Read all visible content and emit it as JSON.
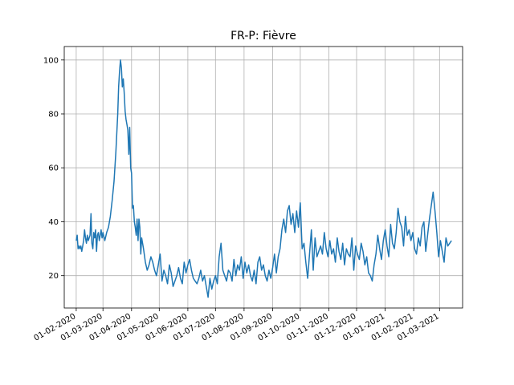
{
  "chart_data": {
    "type": "line",
    "title": "FR-P: Fièvre",
    "xlabel": "",
    "ylabel": "",
    "grid": true,
    "x_range": [
      "2020-01-19",
      "2021-03-26"
    ],
    "ylim": [
      8,
      105
    ],
    "x_ticks": [
      {
        "date": "2020-02-01",
        "label": "01-02-2020"
      },
      {
        "date": "2020-03-01",
        "label": "01-03-2020"
      },
      {
        "date": "2020-04-01",
        "label": "01-04-2020"
      },
      {
        "date": "2020-05-01",
        "label": "01-05-2020"
      },
      {
        "date": "2020-06-01",
        "label": "01-06-2020"
      },
      {
        "date": "2020-07-01",
        "label": "01-07-2020"
      },
      {
        "date": "2020-08-01",
        "label": "01-08-2020"
      },
      {
        "date": "2020-09-01",
        "label": "01-09-2020"
      },
      {
        "date": "2020-10-01",
        "label": "01-10-2020"
      },
      {
        "date": "2020-11-01",
        "label": "01-11-2020"
      },
      {
        "date": "2020-12-01",
        "label": "01-12-2020"
      },
      {
        "date": "2021-01-01",
        "label": "01-01-2021"
      },
      {
        "date": "2021-02-01",
        "label": "01-02-2021"
      },
      {
        "date": "2021-03-01",
        "label": "01-03-2021"
      }
    ],
    "y_ticks": [
      20,
      40,
      60,
      80,
      100
    ],
    "series": [
      {
        "name": "",
        "color": "#1f77b4",
        "x": [
          "2020-02-01",
          "2020-02-02",
          "2020-02-03",
          "2020-02-04",
          "2020-02-05",
          "2020-02-06",
          "2020-02-07",
          "2020-02-08",
          "2020-02-09",
          "2020-02-10",
          "2020-02-11",
          "2020-02-12",
          "2020-02-13",
          "2020-02-14",
          "2020-02-15",
          "2020-02-16",
          "2020-02-17",
          "2020-02-18",
          "2020-02-19",
          "2020-02-20",
          "2020-02-21",
          "2020-02-22",
          "2020-02-23",
          "2020-02-24",
          "2020-02-25",
          "2020-02-26",
          "2020-02-27",
          "2020-02-28",
          "2020-02-29",
          "2020-03-01",
          "2020-03-03",
          "2020-03-05",
          "2020-03-07",
          "2020-03-09",
          "2020-03-11",
          "2020-03-13",
          "2020-03-15",
          "2020-03-17",
          "2020-03-18",
          "2020-03-19",
          "2020-03-20",
          "2020-03-21",
          "2020-03-22",
          "2020-03-23",
          "2020-03-24",
          "2020-03-25",
          "2020-03-26",
          "2020-03-27",
          "2020-03-28",
          "2020-03-29",
          "2020-03-30",
          "2020-03-31",
          "2020-04-01",
          "2020-04-02",
          "2020-04-03",
          "2020-04-04",
          "2020-04-05",
          "2020-04-06",
          "2020-04-07",
          "2020-04-08",
          "2020-04-09",
          "2020-04-10",
          "2020-04-11",
          "2020-04-12",
          "2020-04-14",
          "2020-04-16",
          "2020-04-18",
          "2020-04-20",
          "2020-04-22",
          "2020-04-24",
          "2020-04-26",
          "2020-04-28",
          "2020-04-30",
          "2020-05-02",
          "2020-05-04",
          "2020-05-06",
          "2020-05-08",
          "2020-05-10",
          "2020-05-12",
          "2020-05-14",
          "2020-05-16",
          "2020-05-18",
          "2020-05-20",
          "2020-05-22",
          "2020-05-24",
          "2020-05-26",
          "2020-05-28",
          "2020-05-30",
          "2020-06-01",
          "2020-06-03",
          "2020-06-05",
          "2020-06-07",
          "2020-06-09",
          "2020-06-11",
          "2020-06-13",
          "2020-06-15",
          "2020-06-17",
          "2020-06-19",
          "2020-06-21",
          "2020-06-23",
          "2020-06-25",
          "2020-06-27",
          "2020-06-29",
          "2020-07-01",
          "2020-07-03",
          "2020-07-05",
          "2020-07-07",
          "2020-07-09",
          "2020-07-11",
          "2020-07-13",
          "2020-07-15",
          "2020-07-17",
          "2020-07-19",
          "2020-07-21",
          "2020-07-23",
          "2020-07-25",
          "2020-07-27",
          "2020-07-29",
          "2020-07-31",
          "2020-08-02",
          "2020-08-04",
          "2020-08-06",
          "2020-08-08",
          "2020-08-10",
          "2020-08-12",
          "2020-08-14",
          "2020-08-16",
          "2020-08-18",
          "2020-08-20",
          "2020-08-22",
          "2020-08-24",
          "2020-08-26",
          "2020-08-28",
          "2020-08-30",
          "2020-09-01",
          "2020-09-03",
          "2020-09-05",
          "2020-09-07",
          "2020-09-09",
          "2020-09-11",
          "2020-09-13",
          "2020-09-15",
          "2020-09-17",
          "2020-09-19",
          "2020-09-21",
          "2020-09-23",
          "2020-09-25",
          "2020-09-27",
          "2020-09-29",
          "2020-10-01",
          "2020-10-03",
          "2020-10-05",
          "2020-10-07",
          "2020-10-09",
          "2020-10-11",
          "2020-10-13",
          "2020-10-15",
          "2020-10-17",
          "2020-10-19",
          "2020-10-21",
          "2020-10-23",
          "2020-10-25",
          "2020-10-27",
          "2020-10-29",
          "2020-10-31",
          "2020-11-02",
          "2020-11-04",
          "2020-11-06",
          "2020-11-08",
          "2020-11-10",
          "2020-11-12",
          "2020-11-14",
          "2020-11-16",
          "2020-11-18",
          "2020-11-20",
          "2020-11-22",
          "2020-11-24",
          "2020-11-26",
          "2020-11-28",
          "2020-11-30",
          "2020-12-02",
          "2020-12-04",
          "2020-12-06",
          "2020-12-08",
          "2020-12-10",
          "2020-12-12",
          "2020-12-14",
          "2020-12-16",
          "2020-12-18",
          "2020-12-20",
          "2020-12-22",
          "2020-12-24",
          "2020-12-26",
          "2020-12-28",
          "2020-12-30",
          "2021-01-01",
          "2021-01-03",
          "2021-01-05",
          "2021-01-07",
          "2021-01-09",
          "2021-01-11",
          "2021-01-13",
          "2021-01-15",
          "2021-01-17",
          "2021-01-19",
          "2021-01-21",
          "2021-01-23",
          "2021-01-25",
          "2021-01-27",
          "2021-01-29",
          "2021-01-31",
          "2021-02-02",
          "2021-02-04",
          "2021-02-06",
          "2021-02-08",
          "2021-02-10",
          "2021-02-12",
          "2021-02-14",
          "2021-02-16",
          "2021-02-18",
          "2021-02-20",
          "2021-02-22",
          "2021-02-24",
          "2021-02-26",
          "2021-02-28",
          "2021-03-02",
          "2021-03-04",
          "2021-03-06",
          "2021-03-08",
          "2021-03-10",
          "2021-03-12",
          "2021-03-14"
        ],
        "y": [
          33,
          35,
          30,
          31,
          30,
          31,
          29,
          31,
          33,
          37,
          34,
          32,
          35,
          33,
          34,
          35,
          43,
          32,
          30,
          36,
          34,
          37,
          29,
          35,
          36,
          33,
          35,
          37,
          34,
          36,
          33,
          36,
          38,
          42,
          48,
          55,
          66,
          80,
          90,
          96,
          100,
          97,
          90,
          93,
          88,
          81,
          78,
          76,
          74,
          65,
          75,
          60,
          58,
          45,
          46,
          40,
          38,
          35,
          41,
          33,
          41,
          38,
          28,
          34,
          30,
          25,
          22,
          24,
          27,
          25,
          22,
          20,
          24,
          28,
          18,
          22,
          20,
          17,
          24,
          21,
          16,
          18,
          20,
          23,
          19,
          17,
          25,
          21,
          24,
          26,
          22,
          19,
          18,
          17,
          19,
          22,
          18,
          20,
          16,
          12,
          19,
          15,
          18,
          20,
          17,
          27,
          32,
          22,
          20,
          18,
          22,
          21,
          18,
          26,
          20,
          24,
          22,
          27,
          19,
          25,
          21,
          24,
          20,
          18,
          22,
          17,
          25,
          27,
          22,
          24,
          20,
          18,
          22,
          19,
          23,
          28,
          21,
          27,
          30,
          37,
          41,
          36,
          44,
          46,
          39,
          43,
          36,
          44,
          38,
          47,
          30,
          32,
          25,
          19,
          28,
          37,
          22,
          34,
          27,
          29,
          31,
          28,
          36,
          30,
          27,
          33,
          28,
          30,
          25,
          34,
          29,
          26,
          32,
          24,
          30,
          28,
          27,
          34,
          22,
          31,
          28,
          26,
          32,
          29,
          24,
          27,
          21,
          20,
          18,
          24,
          28,
          35,
          30,
          26,
          33,
          37,
          31,
          27,
          39,
          32,
          30,
          36,
          45,
          40,
          38,
          31,
          42,
          35,
          37,
          33,
          36,
          30,
          28,
          34,
          31,
          38,
          40,
          29,
          35,
          41,
          46,
          51,
          44,
          36,
          27,
          33,
          29,
          25,
          34,
          31,
          32,
          33
        ]
      }
    ]
  }
}
